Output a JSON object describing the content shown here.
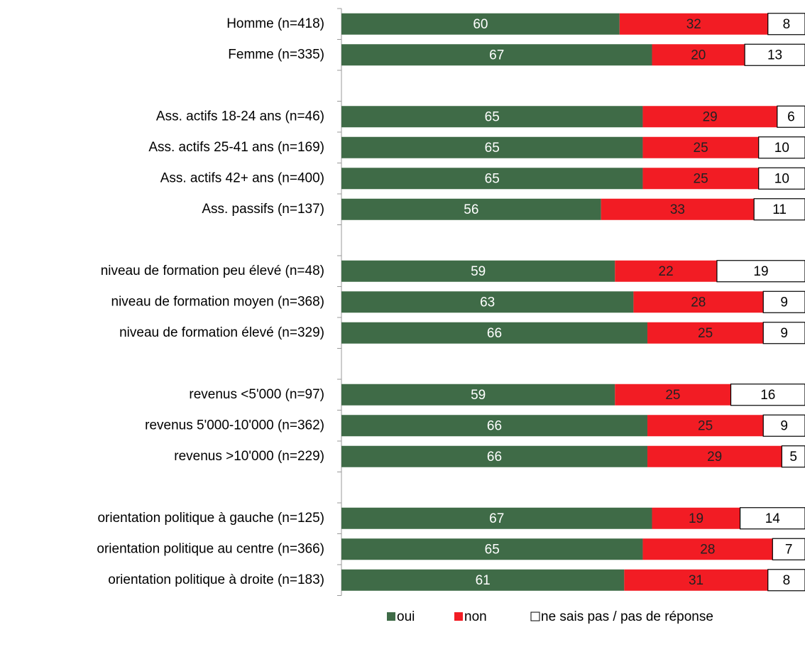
{
  "chart_data": {
    "type": "stacked_bar_horizontal",
    "categories": [
      "Homme (n=418)",
      "Femme (n=335)",
      null,
      "Ass. actifs 18-24 ans (n=46)",
      "Ass. actifs 25-41 ans (n=169)",
      "Ass. actifs 42+ ans (n=400)",
      "Ass. passifs (n=137)",
      null,
      "niveau de formation peu élevé (n=48)",
      "niveau de formation moyen (n=368)",
      "niveau de formation élevé (n=329)",
      null,
      "revenus <5'000 (n=97)",
      "revenus 5'000-10'000 (n=362)",
      "revenus >10'000 (n=229)",
      null,
      "orientation politique à gauche (n=125)",
      "orientation politique au centre (n=366)",
      "orientation politique à droite (n=183)"
    ],
    "series": [
      {
        "name": "oui",
        "color": "#3f6b47",
        "values": [
          60,
          67,
          null,
          65,
          65,
          65,
          56,
          null,
          59,
          63,
          66,
          null,
          59,
          66,
          66,
          null,
          67,
          65,
          61
        ]
      },
      {
        "name": "non",
        "color": "#f21c24",
        "values": [
          32,
          20,
          null,
          29,
          25,
          25,
          33,
          null,
          22,
          28,
          25,
          null,
          25,
          25,
          29,
          null,
          19,
          28,
          31
        ]
      },
      {
        "name": "ne sais pas / pas de réponse",
        "color": "#ffffff",
        "values": [
          8,
          13,
          null,
          6,
          10,
          10,
          11,
          null,
          19,
          9,
          9,
          null,
          16,
          9,
          5,
          null,
          14,
          7,
          8
        ]
      }
    ],
    "xlim": [
      0,
      100
    ]
  }
}
